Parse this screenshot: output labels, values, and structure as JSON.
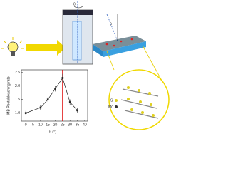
{
  "chart_data": {
    "type": "line",
    "xlabel": "θ (°)",
    "ylabel": "MB Photobleaching rate",
    "x": [
      0,
      10,
      15,
      20,
      25,
      30,
      35
    ],
    "values": [
      1.0,
      1.2,
      1.5,
      1.9,
      2.3,
      1.4,
      1.1
    ],
    "errors": [
      0.08,
      0.08,
      0.08,
      0.1,
      0.15,
      0.1,
      0.08
    ],
    "color": "#222222",
    "marker_line_color": "#dd0000",
    "marker_line_x": 25,
    "xlim": [
      -3,
      42
    ],
    "xticks": [
      0,
      5,
      10,
      15,
      20,
      25,
      30,
      35,
      40
    ],
    "ylim": [
      0.7,
      2.6
    ],
    "yticks": [
      {
        "value": 1,
        "label": "1.0"
      },
      {
        "value": 1.5,
        "label": "1.5"
      },
      {
        "value": 2,
        "label": "2.0"
      },
      {
        "value": 2.5,
        "label": "2.5"
      }
    ]
  },
  "illustration": {
    "angle_label_top": "θ",
    "angle_label_surface": "θ",
    "legend_s": "S",
    "legend_mo": "Mo"
  }
}
